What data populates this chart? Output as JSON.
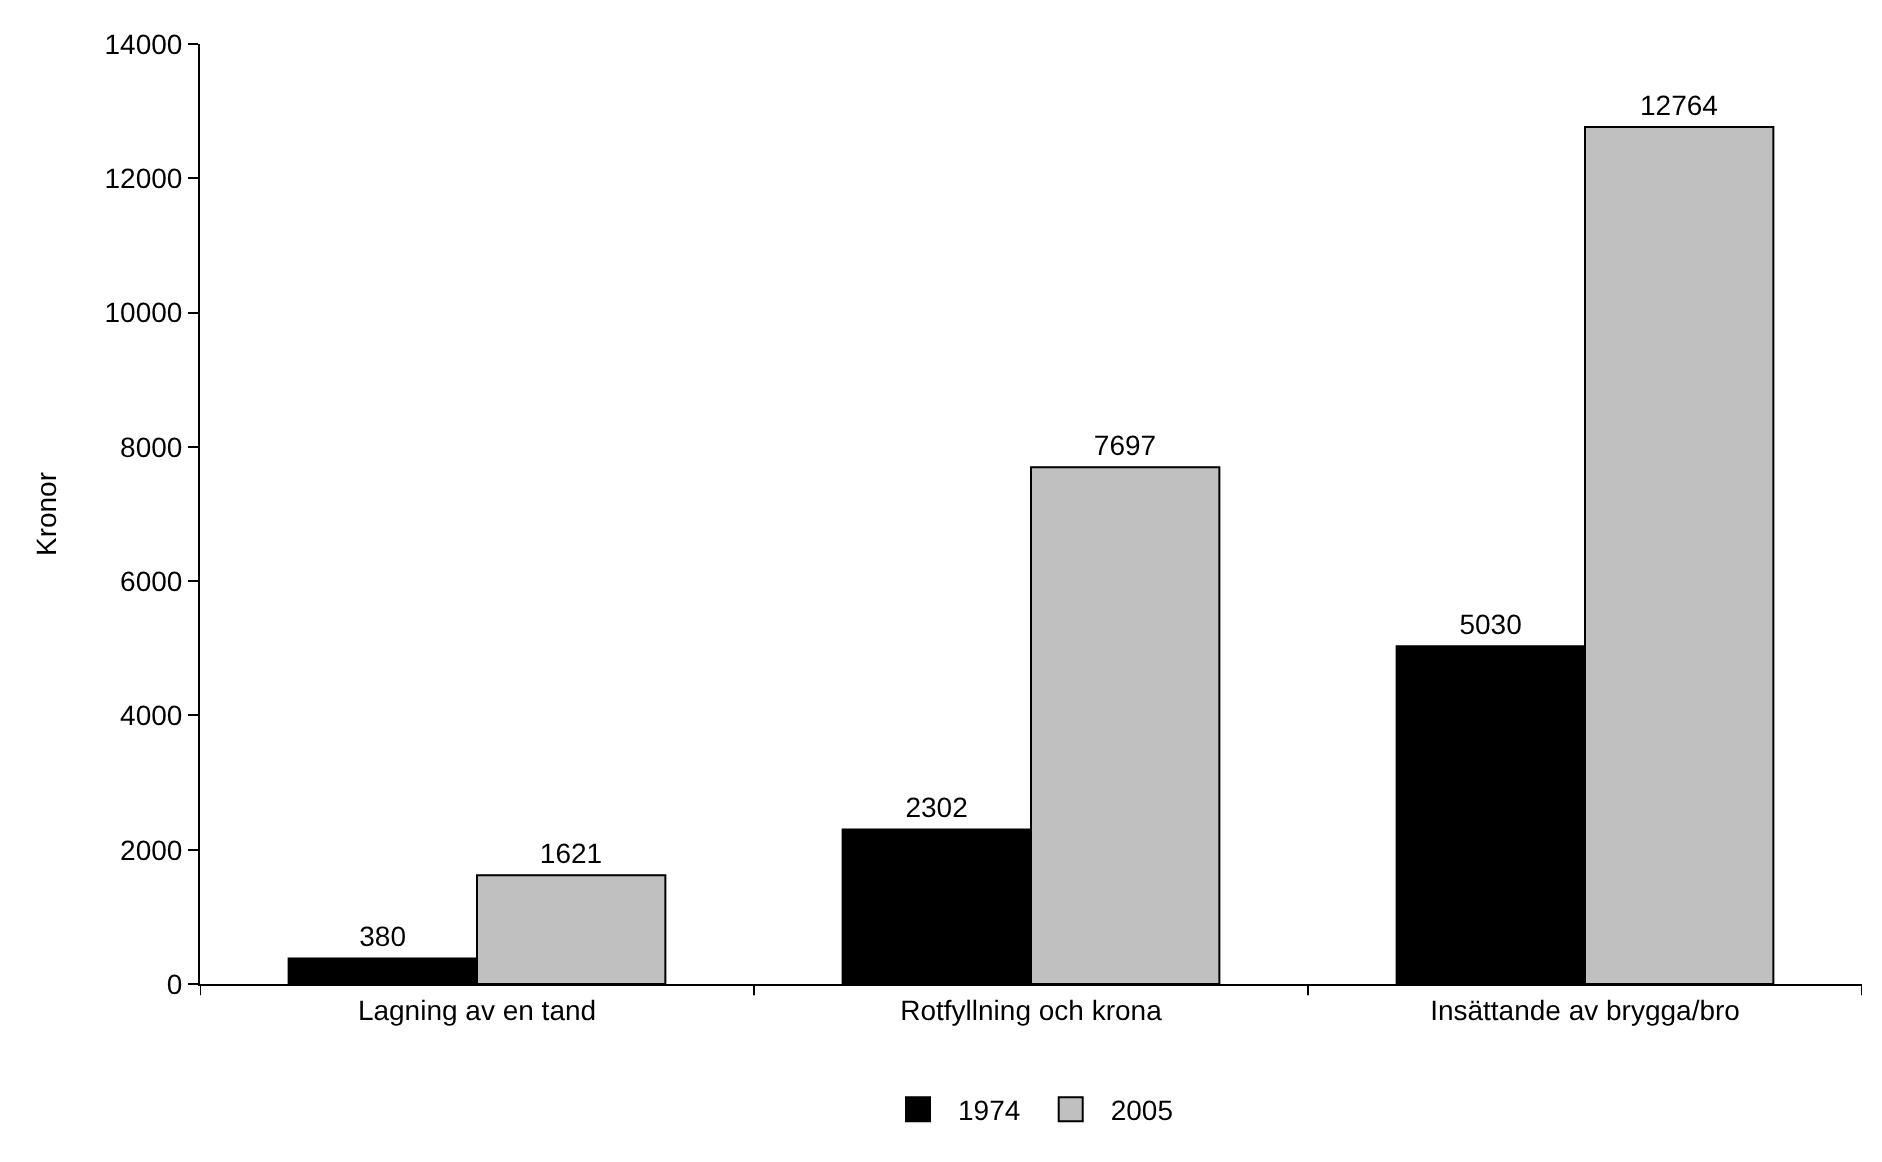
{
  "chart_data": {
    "type": "bar",
    "ylabel": "Kronor",
    "categories": [
      "Lagning av en tand",
      "Rotfyllning och krona",
      "Insättande av brygga/bro"
    ],
    "series": [
      {
        "name": "1974",
        "color": "#000000",
        "values": [
          380,
          2302,
          5030
        ]
      },
      {
        "name": "2005",
        "color": "#c0c0c0",
        "values": [
          1621,
          7697,
          12764
        ]
      }
    ],
    "ylim": [
      0,
      14000
    ],
    "yticks": [
      0,
      2000,
      4000,
      6000,
      8000,
      10000,
      12000,
      14000
    ],
    "data_labels": true,
    "legend": "bottom",
    "grid": false
  }
}
